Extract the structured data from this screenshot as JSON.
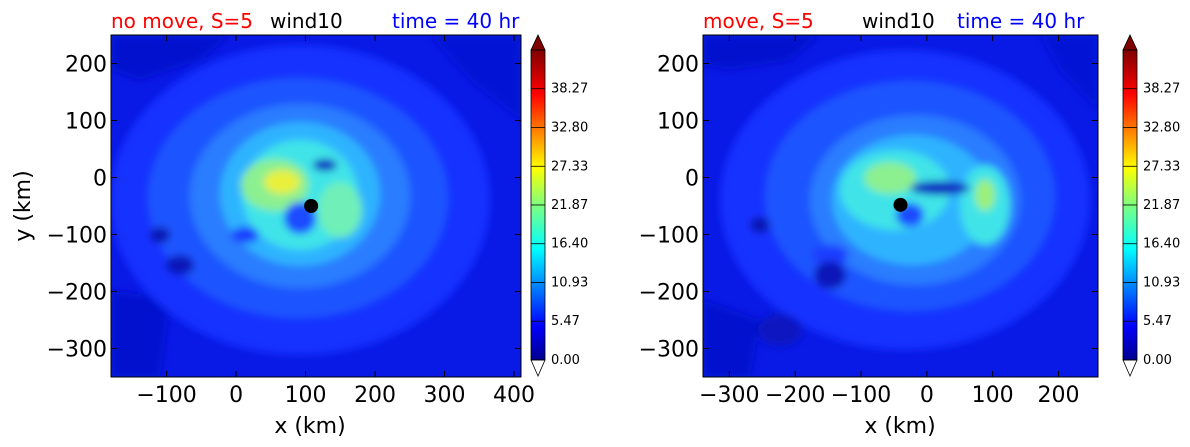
{
  "chart_data": [
    {
      "type": "heatmap",
      "variable": "wind10",
      "title_left": "no move, S=5",
      "title_center": "wind10",
      "title_right": "time = 40 hr",
      "title_colors": {
        "left": "#ff0000",
        "center": "#000000",
        "right": "#0000ff"
      },
      "xlabel": "x (km)",
      "ylabel": "y (km)",
      "xlim": [
        -180,
        410
      ],
      "ylim": [
        -350,
        250
      ],
      "xticks": [
        -100,
        0,
        100,
        200,
        300,
        400
      ],
      "xtick_labels": [
        "−100",
        "0",
        "100",
        "200",
        "300",
        "400"
      ],
      "yticks": [
        200,
        100,
        0,
        -100,
        -200,
        -300
      ],
      "ytick_labels": [
        "200",
        "100",
        "0",
        "−100",
        "−200",
        "−300"
      ],
      "center_marker": {
        "x": 108,
        "y": -50
      },
      "max_wind": {
        "x": 80,
        "y": -5,
        "value": 27
      },
      "colorbar": {
        "min": 0,
        "max": 43.73,
        "ticks": [
          0.0,
          5.47,
          10.93,
          16.4,
          21.87,
          27.33,
          32.8,
          38.27
        ],
        "tick_labels": [
          "0.00",
          "5.47",
          "10.93",
          "16.40",
          "21.87",
          "27.33",
          "32.80",
          "38.27"
        ],
        "extend": "both",
        "colormap": "jet"
      }
    },
    {
      "type": "heatmap",
      "variable": "wind10",
      "title_left": "move, S=5",
      "title_center": "wind10",
      "title_right": "time = 40 hr",
      "title_colors": {
        "left": "#ff0000",
        "center": "#000000",
        "right": "#0000ff"
      },
      "xlabel": "x (km)",
      "ylabel": "",
      "xlim": [
        -340,
        260
      ],
      "ylim": [
        -350,
        250
      ],
      "xticks": [
        -300,
        -200,
        -100,
        0,
        100,
        200
      ],
      "xtick_labels": [
        "−300",
        "−200",
        "−100",
        "0",
        "100",
        "200"
      ],
      "yticks": [
        200,
        100,
        0,
        -100,
        -200,
        -300
      ],
      "ytick_labels": [
        "200",
        "100",
        "0",
        "−100",
        "−200",
        "−300"
      ],
      "center_marker": {
        "x": -40,
        "y": -48
      },
      "max_wind": {
        "x": -5,
        "y": 0,
        "value": 22
      },
      "colorbar": {
        "min": 0,
        "max": 43.73,
        "ticks": [
          0.0,
          5.47,
          10.93,
          16.4,
          21.87,
          27.33,
          32.8,
          38.27
        ],
        "tick_labels": [
          "0.00",
          "5.47",
          "10.93",
          "16.40",
          "21.87",
          "27.33",
          "32.80",
          "38.27"
        ],
        "extend": "both",
        "colormap": "jet"
      }
    }
  ]
}
